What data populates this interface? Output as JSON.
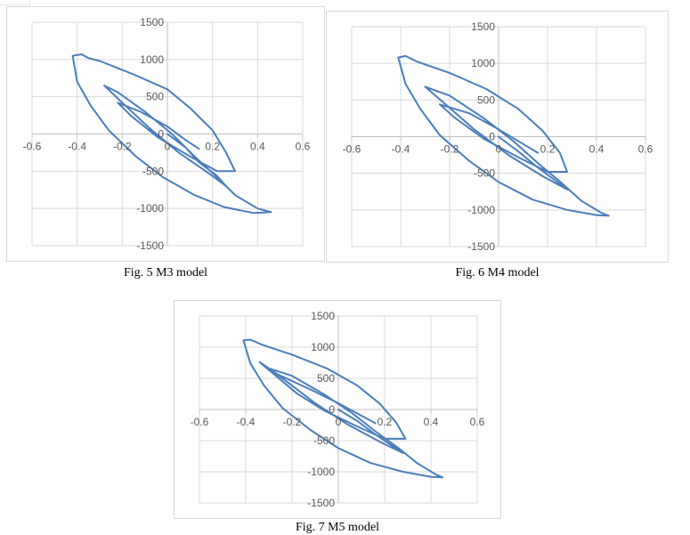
{
  "colors": {
    "series": "#4A7EBB",
    "grid": "#d9d9d9",
    "axis": "#bfbfbf",
    "tick_text": "#595959"
  },
  "chart_data": [
    {
      "type": "line",
      "caption": "Fig. 5 M3 model",
      "xlim": [
        -0.6,
        0.6
      ],
      "ylim": [
        -1500,
        1500
      ],
      "xticks": [
        -0.6,
        -0.4,
        -0.2,
        0,
        0.2,
        0.4,
        0.6
      ],
      "yticks": [
        1500,
        1000,
        500,
        0,
        -500,
        -1000,
        -1500
      ],
      "xtick_labels": [
        "-0.6",
        "-0.4",
        "-0.2",
        "0",
        "0.2",
        "0.4",
        "0.6"
      ],
      "ytick_labels": [
        "1500",
        "1000",
        "500",
        "0",
        "-500",
        "-1000",
        "-1500"
      ],
      "grid": true,
      "series": [
        {
          "points": [
            [
              0,
              0
            ],
            [
              0.08,
              -180
            ],
            [
              0.14,
              -380
            ],
            [
              0.22,
              -560
            ],
            [
              0.26,
              -700
            ],
            [
              0.18,
              -520
            ],
            [
              0.05,
              -250
            ],
            [
              -0.08,
              80
            ],
            [
              -0.2,
              420
            ],
            [
              -0.28,
              650
            ],
            [
              -0.22,
              560
            ],
            [
              -0.1,
              300
            ],
            [
              0.02,
              0
            ],
            [
              0.12,
              -300
            ],
            [
              0.22,
              -580
            ],
            [
              0.3,
              -820
            ],
            [
              0.4,
              -1000
            ],
            [
              0.46,
              -1050
            ],
            [
              0.38,
              -1060
            ],
            [
              0.25,
              -980
            ],
            [
              0.12,
              -820
            ],
            [
              -0.02,
              -580
            ],
            [
              -0.14,
              -300
            ],
            [
              -0.26,
              50
            ],
            [
              -0.34,
              380
            ],
            [
              -0.4,
              700
            ],
            [
              -0.42,
              1050
            ],
            [
              -0.38,
              1070
            ],
            [
              -0.35,
              1020
            ],
            [
              -0.3,
              980
            ],
            [
              -0.15,
              800
            ],
            [
              0,
              600
            ],
            [
              0.1,
              350
            ],
            [
              0.2,
              50
            ],
            [
              0.26,
              -250
            ],
            [
              0.3,
              -500
            ],
            [
              0.22,
              -500
            ],
            [
              0.1,
              -300
            ],
            [
              -0.04,
              -50
            ],
            [
              -0.16,
              240
            ],
            [
              -0.22,
              420
            ],
            [
              -0.12,
              300
            ],
            [
              0,
              100
            ],
            [
              0.08,
              -80
            ],
            [
              0.14,
              -200
            ]
          ]
        }
      ]
    },
    {
      "type": "line",
      "caption": "Fig. 6 M4 model",
      "xlim": [
        -0.6,
        0.6
      ],
      "ylim": [
        -1500,
        1500
      ],
      "xticks": [
        -0.6,
        -0.4,
        -0.2,
        0,
        0.2,
        0.4,
        0.6
      ],
      "yticks": [
        1500,
        1000,
        500,
        0,
        -500,
        -1000,
        -1500
      ],
      "xtick_labels": [
        "-0.6",
        "-0.4",
        "-0.2",
        "0",
        "0.2",
        "0.4",
        "0.6"
      ],
      "ytick_labels": [
        "1500",
        "1000",
        "500",
        "0",
        "-500",
        "-1000",
        "-1500"
      ],
      "grid": true,
      "series": [
        {
          "points": [
            [
              0,
              0
            ],
            [
              0.08,
              -200
            ],
            [
              0.16,
              -420
            ],
            [
              0.24,
              -620
            ],
            [
              0.28,
              -720
            ],
            [
              0.18,
              -540
            ],
            [
              0.04,
              -250
            ],
            [
              -0.1,
              100
            ],
            [
              -0.22,
              450
            ],
            [
              -0.3,
              680
            ],
            [
              -0.2,
              560
            ],
            [
              -0.06,
              250
            ],
            [
              0.06,
              -60
            ],
            [
              0.16,
              -360
            ],
            [
              0.26,
              -640
            ],
            [
              0.34,
              -880
            ],
            [
              0.42,
              -1040
            ],
            [
              0.45,
              -1080
            ],
            [
              0.4,
              -1070
            ],
            [
              0.28,
              -1000
            ],
            [
              0.14,
              -860
            ],
            [
              0,
              -620
            ],
            [
              -0.12,
              -330
            ],
            [
              -0.24,
              20
            ],
            [
              -0.32,
              380
            ],
            [
              -0.38,
              720
            ],
            [
              -0.41,
              1080
            ],
            [
              -0.38,
              1100
            ],
            [
              -0.33,
              1020
            ],
            [
              -0.2,
              870
            ],
            [
              -0.05,
              650
            ],
            [
              0.08,
              380
            ],
            [
              0.18,
              80
            ],
            [
              0.25,
              -220
            ],
            [
              0.28,
              -480
            ],
            [
              0.2,
              -480
            ],
            [
              0.08,
              -280
            ],
            [
              -0.06,
              -30
            ],
            [
              -0.18,
              260
            ],
            [
              -0.24,
              440
            ],
            [
              -0.12,
              320
            ],
            [
              0,
              100
            ],
            [
              0.1,
              -100
            ],
            [
              0.16,
              -220
            ]
          ]
        }
      ]
    },
    {
      "type": "line",
      "caption": "Fig. 7 M5 model",
      "xlim": [
        -0.6,
        0.6
      ],
      "ylim": [
        -1500,
        1500
      ],
      "xticks": [
        -0.6,
        -0.4,
        -0.2,
        0,
        0.2,
        0.4,
        0.6
      ],
      "yticks": [
        1500,
        1000,
        500,
        0,
        -500,
        -1000,
        -1500
      ],
      "xtick_labels": [
        "-0.6",
        "-0.4",
        "-0.2",
        "0",
        "0.2",
        "0.4",
        "0.6"
      ],
      "ytick_labels": [
        "1500",
        "1000",
        "500",
        "0",
        "-500",
        "-1000",
        "-1500"
      ],
      "grid": true,
      "series": [
        {
          "points": [
            [
              0,
              0
            ],
            [
              0.08,
              -180
            ],
            [
              0.16,
              -400
            ],
            [
              0.24,
              -600
            ],
            [
              0.28,
              -700
            ],
            [
              0.18,
              -520
            ],
            [
              0.04,
              -240
            ],
            [
              -0.1,
              100
            ],
            [
              -0.22,
              440
            ],
            [
              -0.3,
              660
            ],
            [
              -0.2,
              540
            ],
            [
              -0.06,
              240
            ],
            [
              0.06,
              -60
            ],
            [
              0.16,
              -350
            ],
            [
              0.26,
              -620
            ],
            [
              0.34,
              -860
            ],
            [
              0.42,
              -1040
            ],
            [
              0.45,
              -1090
            ],
            [
              0.4,
              -1080
            ],
            [
              0.28,
              -1000
            ],
            [
              0.14,
              -860
            ],
            [
              0,
              -620
            ],
            [
              -0.12,
              -330
            ],
            [
              -0.24,
              20
            ],
            [
              -0.32,
              380
            ],
            [
              -0.38,
              740
            ],
            [
              -0.41,
              1110
            ],
            [
              -0.38,
              1120
            ],
            [
              -0.33,
              1040
            ],
            [
              -0.2,
              880
            ],
            [
              -0.05,
              660
            ],
            [
              0.08,
              390
            ],
            [
              0.18,
              90
            ],
            [
              0.25,
              -210
            ],
            [
              0.29,
              -470
            ],
            [
              0.2,
              -470
            ],
            [
              0.08,
              -270
            ],
            [
              -0.06,
              -20
            ],
            [
              -0.18,
              260
            ],
            [
              -0.34,
              760
            ],
            [
              -0.26,
              560
            ],
            [
              -0.12,
              320
            ],
            [
              0,
              100
            ],
            [
              0.1,
              -100
            ],
            [
              0.16,
              -220
            ]
          ]
        }
      ]
    }
  ]
}
